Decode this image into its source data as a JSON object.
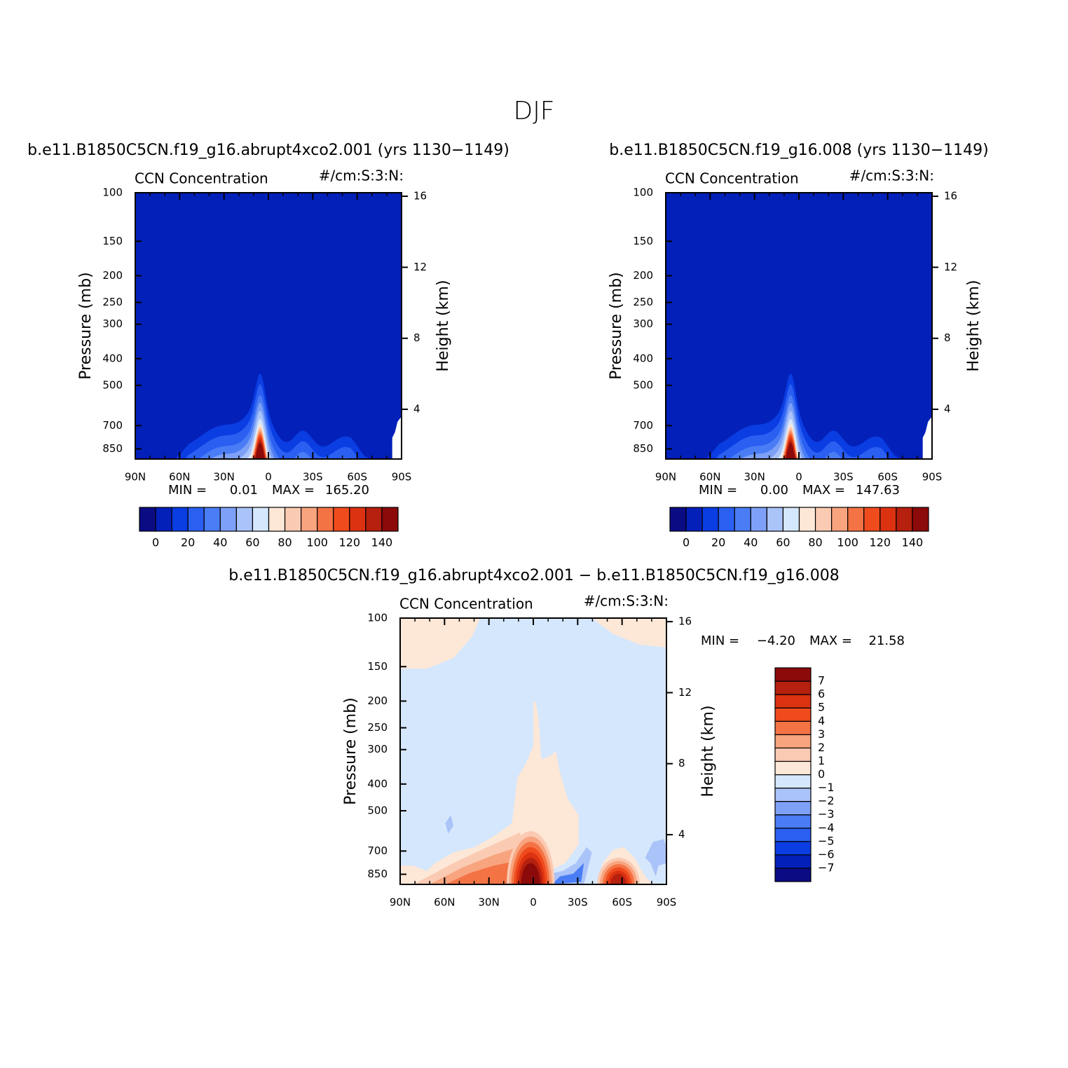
{
  "title": "DJF",
  "chart_data": [
    {
      "type": "contour",
      "title": "b.e11.B1850C5CN.f19_g16.abrupt4xco2.001 (yrs 1130−1149)",
      "left_string": "CCN Concentration",
      "right_string": "#/cm:S:3:N:",
      "y_label": "Pressure (mb)",
      "y2_label": "Height (km)",
      "xlim": [
        90,
        -90
      ],
      "xticks": [
        {
          "value": 90,
          "label": "90N"
        },
        {
          "value": 60,
          "label": "60N"
        },
        {
          "value": 30,
          "label": "30N"
        },
        0,
        {
          "value": -30,
          "label": "30S"
        },
        {
          "value": -60,
          "label": "60S"
        },
        {
          "value": -90,
          "label": "90S"
        }
      ],
      "ylim": [
        925,
        100
      ],
      "log_scale": true,
      "yticks": [
        100,
        150,
        200,
        250,
        300,
        400,
        500,
        700,
        850
      ],
      "y2lim": [
        1.2,
        16.2
      ],
      "y2ticks": [
        4,
        8,
        12,
        16
      ],
      "min_text": "MIN =",
      "min": 0.01,
      "max_text": "MAX =",
      "max": {
        "value": 165.2,
        "label": "165.20"
      },
      "colorbar_orientation": "horizontal",
      "levels": [
        0,
        10,
        20,
        30,
        40,
        50,
        60,
        70,
        80,
        90,
        100,
        110,
        120,
        130,
        140
      ],
      "colorbar_ticks": [
        0,
        20,
        40,
        60,
        80,
        100,
        120,
        140
      ],
      "colors": [
        "#0b0b84",
        "#0320b9",
        "#0a3de2",
        "#2a5ff2",
        "#4a7df5",
        "#7ea1f7",
        "#aac3f8",
        "#d5e7fc",
        "#fde7d7",
        "#fbcab2",
        "#f8a47f",
        "#f47345",
        "#ef4b1d",
        "#dc3211",
        "#b6200e",
        "#8c0a0a"
      ]
    },
    {
      "type": "contour",
      "title": "b.e11.B1850C5CN.f19_g16.008 (yrs 1130−1149)",
      "left_string": "CCN Concentration",
      "right_string": "#/cm:S:3:N:",
      "y_label": "Pressure (mb)",
      "y2_label": "Height (km)",
      "xlim": [
        90,
        -90
      ],
      "xticks": [
        {
          "value": 90,
          "label": "90N"
        },
        {
          "value": 60,
          "label": "60N"
        },
        {
          "value": 30,
          "label": "30N"
        },
        0,
        {
          "value": -30,
          "label": "30S"
        },
        {
          "value": -60,
          "label": "60S"
        },
        {
          "value": -90,
          "label": "90S"
        }
      ],
      "ylim": [
        925,
        100
      ],
      "log_scale": true,
      "yticks": [
        100,
        150,
        200,
        250,
        300,
        400,
        500,
        700,
        850
      ],
      "y2lim": [
        1.2,
        16.2
      ],
      "y2ticks": [
        4,
        8,
        12,
        16
      ],
      "min_text": "MIN =",
      "min": {
        "value": 0,
        "label": "0.00"
      },
      "max_text": "MAX =",
      "max": 147.63,
      "colorbar_orientation": "horizontal",
      "levels": [
        0,
        10,
        20,
        30,
        40,
        50,
        60,
        70,
        80,
        90,
        100,
        110,
        120,
        130,
        140
      ],
      "colorbar_ticks": [
        0,
        20,
        40,
        60,
        80,
        100,
        120,
        140
      ],
      "colors": [
        "#0b0b84",
        "#0320b9",
        "#0a3de2",
        "#2a5ff2",
        "#4a7df5",
        "#7ea1f7",
        "#aac3f8",
        "#d5e7fc",
        "#fde7d7",
        "#fbcab2",
        "#f8a47f",
        "#f47345",
        "#ef4b1d",
        "#dc3211",
        "#b6200e",
        "#8c0a0a"
      ]
    },
    {
      "type": "contour",
      "title": "b.e11.B1850C5CN.f19_g16.abrupt4xco2.001 − b.e11.B1850C5CN.f19_g16.008",
      "left_string": "CCN Concentration",
      "right_string": "#/cm:S:3:N:",
      "y_label": "Pressure (mb)",
      "y2_label": "Height (km)",
      "xlim": [
        90,
        -90
      ],
      "xticks": [
        {
          "value": 90,
          "label": "90N"
        },
        {
          "value": 60,
          "label": "60N"
        },
        {
          "value": 30,
          "label": "30N"
        },
        0,
        {
          "value": -30,
          "label": "30S"
        },
        {
          "value": -60,
          "label": "60S"
        },
        {
          "value": -90,
          "label": "90S"
        }
      ],
      "ylim": [
        925,
        100
      ],
      "log_scale": true,
      "yticks": [
        100,
        150,
        200,
        250,
        300,
        400,
        500,
        700,
        850
      ],
      "y2lim": [
        1.2,
        16.2
      ],
      "y2ticks": [
        4,
        8,
        12,
        16
      ],
      "min_text": "MIN =",
      "min": {
        "value": -4.2,
        "label": "−4.20"
      },
      "max_text": "MAX =",
      "max": 21.58,
      "colorbar_orientation": "vertical",
      "levels": [
        -7,
        -6,
        -5,
        -4,
        -3,
        -2,
        -1,
        0,
        1,
        2,
        3,
        4,
        5,
        6,
        7
      ],
      "colorbar_ticks": [
        {
          "value": -7,
          "label": "−7"
        },
        {
          "value": -6,
          "label": "−6"
        },
        {
          "value": -5,
          "label": "−5"
        },
        {
          "value": -4,
          "label": "−4"
        },
        {
          "value": -3,
          "label": "−3"
        },
        {
          "value": -2,
          "label": "−2"
        },
        {
          "value": -1,
          "label": "−1"
        },
        0,
        1,
        2,
        3,
        4,
        5,
        6,
        7
      ],
      "colors": [
        "#0b0b84",
        "#0320b9",
        "#0a3de2",
        "#2a5ff2",
        "#4a7df5",
        "#7ea1f7",
        "#aac3f8",
        "#d5e7fc",
        "#fde7d7",
        "#fbcab2",
        "#f8a47f",
        "#f47345",
        "#ef4b1d",
        "#dc3211",
        "#b6200e",
        "#8c0a0a"
      ]
    }
  ]
}
